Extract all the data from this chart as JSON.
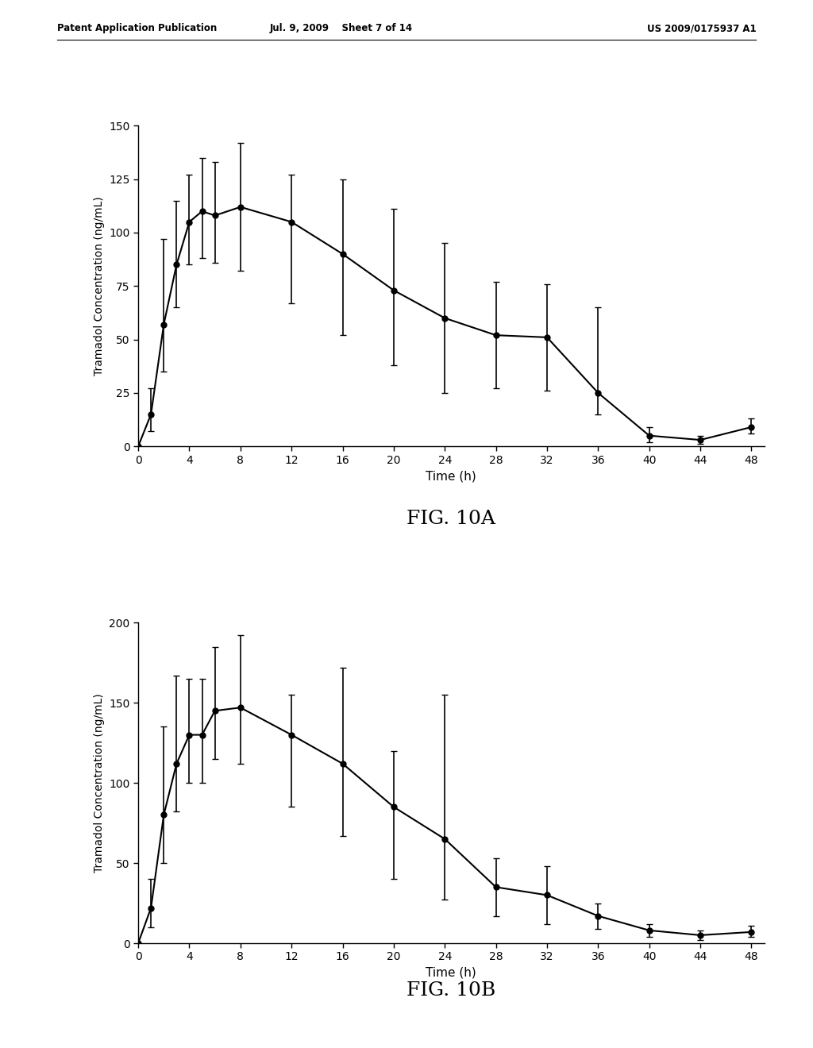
{
  "fig10A": {
    "x": [
      0,
      1,
      2,
      3,
      4,
      5,
      6,
      8,
      12,
      16,
      20,
      24,
      28,
      32,
      36,
      40,
      44,
      48
    ],
    "y": [
      0,
      15,
      57,
      85,
      105,
      110,
      108,
      112,
      105,
      90,
      73,
      60,
      52,
      51,
      25,
      5,
      3,
      9
    ],
    "yerr_lo": [
      0,
      8,
      22,
      20,
      20,
      22,
      22,
      30,
      38,
      38,
      35,
      35,
      25,
      25,
      10,
      3,
      2,
      3
    ],
    "yerr_hi": [
      0,
      12,
      40,
      30,
      22,
      25,
      25,
      30,
      22,
      35,
      38,
      35,
      25,
      25,
      40,
      4,
      2,
      4
    ],
    "ylim": [
      0,
      150
    ],
    "yticks": [
      0,
      25,
      50,
      75,
      100,
      125,
      150
    ],
    "xlabel": "Time (h)",
    "ylabel": "Tramadol Concentration (ng/mL)",
    "caption": "FIG. 10A"
  },
  "fig10B": {
    "x": [
      0,
      1,
      2,
      3,
      4,
      5,
      6,
      8,
      12,
      16,
      20,
      24,
      28,
      32,
      36,
      40,
      44,
      48
    ],
    "y": [
      0,
      22,
      80,
      112,
      130,
      130,
      145,
      147,
      130,
      112,
      85,
      65,
      35,
      30,
      17,
      8,
      5,
      7
    ],
    "yerr_lo": [
      0,
      12,
      30,
      30,
      30,
      30,
      30,
      35,
      45,
      45,
      45,
      38,
      18,
      18,
      8,
      4,
      3,
      3
    ],
    "yerr_hi": [
      0,
      18,
      55,
      55,
      35,
      35,
      40,
      45,
      25,
      60,
      35,
      90,
      18,
      18,
      8,
      4,
      3,
      4
    ],
    "ylim": [
      0,
      200
    ],
    "yticks": [
      0,
      50,
      100,
      150,
      200
    ],
    "xlabel": "Time (h)",
    "ylabel": "Tramadol Concentration (ng/mL)",
    "caption": "FIG. 10B"
  },
  "xticks": [
    0,
    4,
    8,
    12,
    16,
    20,
    24,
    28,
    32,
    36,
    40,
    44,
    48
  ],
  "xlim": [
    0,
    49
  ],
  "header_left": "Patent Application Publication",
  "header_center": "Jul. 9, 2009    Sheet 7 of 14",
  "header_right": "US 2009/0175937 A1",
  "background_color": "#ffffff",
  "line_color": "#000000",
  "marker": "o",
  "markersize": 5,
  "linewidth": 1.5,
  "capsize": 3,
  "elinewidth": 1.2
}
